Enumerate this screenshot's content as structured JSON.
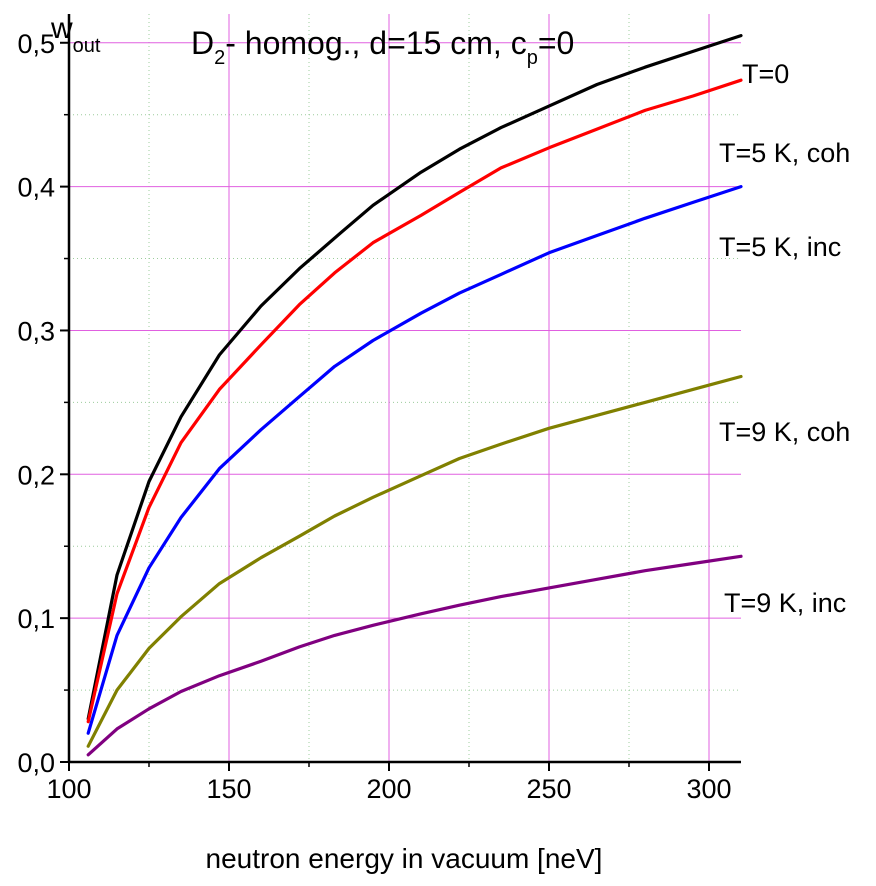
{
  "chart_data": {
    "type": "line",
    "title_main": "D",
    "title_main_sub": "2",
    "title_rest": "- homog., d=15 cm, c",
    "title_rest_sub": "p",
    "title_tail": "=0",
    "ylabel_main": "w",
    "ylabel_sub": "out",
    "xlabel": "neutron energy in vacuum [neV]",
    "xlim": [
      100,
      310
    ],
    "ylim": [
      0,
      0.52
    ],
    "x_ticks": [
      100,
      150,
      200,
      250,
      300
    ],
    "x_tick_labels": [
      "100",
      "150",
      "200",
      "250",
      "300"
    ],
    "y_ticks": [
      0,
      0.1,
      0.2,
      0.3,
      0.4,
      0.5
    ],
    "y_tick_labels": [
      "0,0",
      "0,1",
      "0,2",
      "0,3",
      "0,4",
      "0,5"
    ],
    "grid": true,
    "legend": "labels at line ends, right side",
    "series": [
      {
        "name": "T=0",
        "color": "#000000",
        "x": [
          106,
          115,
          125,
          135,
          147,
          160,
          172,
          185,
          195,
          210,
          222,
          235,
          250,
          265,
          280,
          295,
          310
        ],
        "y": [
          0.03,
          0.13,
          0.195,
          0.24,
          0.283,
          0.317,
          0.343,
          0.368,
          0.387,
          0.41,
          0.426,
          0.441,
          0.456,
          0.471,
          0.483,
          0.494,
          0.505
        ]
      },
      {
        "name": "T=5 K, coh",
        "color": "#ff0000",
        "x": [
          106,
          115,
          125,
          135,
          147,
          160,
          172,
          183,
          195,
          210,
          222,
          235,
          250,
          265,
          280,
          295,
          310
        ],
        "y": [
          0.028,
          0.117,
          0.177,
          0.222,
          0.259,
          0.29,
          0.318,
          0.34,
          0.361,
          0.38,
          0.396,
          0.413,
          0.427,
          0.44,
          0.453,
          0.463,
          0.474
        ]
      },
      {
        "name": "T=5 K, inc",
        "color": "#0000ff",
        "x": [
          106,
          115,
          125,
          135,
          147,
          160,
          172,
          183,
          195,
          210,
          222,
          235,
          250,
          265,
          280,
          295,
          310
        ],
        "y": [
          0.02,
          0.088,
          0.135,
          0.17,
          0.204,
          0.231,
          0.254,
          0.275,
          0.293,
          0.312,
          0.326,
          0.339,
          0.354,
          0.366,
          0.378,
          0.389,
          0.4
        ]
      },
      {
        "name": "T=9 K, coh",
        "color": "#808000",
        "x": [
          106,
          115,
          125,
          135,
          147,
          160,
          172,
          183,
          195,
          210,
          222,
          235,
          250,
          265,
          280,
          295,
          310
        ],
        "y": [
          0.011,
          0.05,
          0.079,
          0.101,
          0.124,
          0.142,
          0.157,
          0.171,
          0.184,
          0.199,
          0.211,
          0.221,
          0.232,
          0.241,
          0.25,
          0.259,
          0.268
        ]
      },
      {
        "name": "T=9 K, inc",
        "color": "#800080",
        "x": [
          106,
          115,
          125,
          135,
          147,
          160,
          172,
          183,
          195,
          210,
          222,
          235,
          250,
          265,
          280,
          295,
          310
        ],
        "y": [
          0.005,
          0.023,
          0.037,
          0.049,
          0.06,
          0.07,
          0.08,
          0.088,
          0.095,
          0.103,
          0.109,
          0.115,
          0.121,
          0.127,
          0.133,
          0.138,
          0.143
        ]
      }
    ]
  }
}
